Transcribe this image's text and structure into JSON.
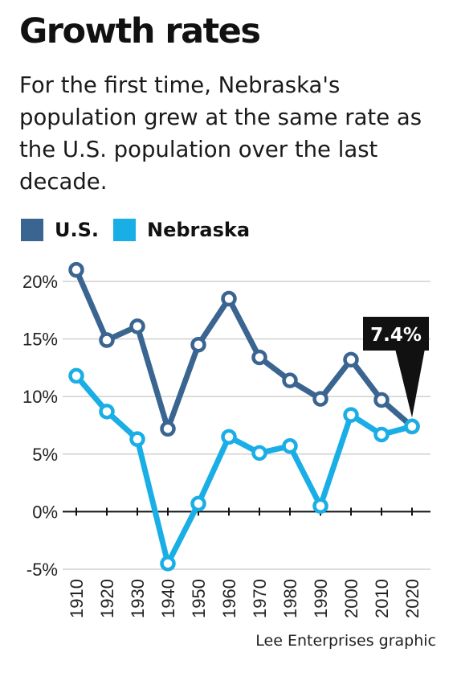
{
  "header": {
    "title": "Growth rates",
    "subtitle": "For the first time, Nebraska's population grew at the same rate as the U.S. population over the last decade."
  },
  "legend": [
    {
      "label": "U.S.",
      "color": "#3a6591"
    },
    {
      "label": "Nebraska",
      "color": "#1aaee6"
    }
  ],
  "callout": {
    "text": "7.4%"
  },
  "source": "Lee Enterprises graphic",
  "chart_data": {
    "type": "line",
    "x": [
      1910,
      1920,
      1930,
      1940,
      1950,
      1960,
      1970,
      1980,
      1990,
      2000,
      2010,
      2020
    ],
    "x_tick_labels": [
      "1910",
      "1920",
      "1930",
      "1940",
      "1950",
      "1960",
      "1970",
      "1980",
      "1990",
      "2000",
      "2010",
      "2020"
    ],
    "y_tick_values": [
      20,
      15,
      10,
      5,
      0,
      -5
    ],
    "y_tick_labels": [
      "20%",
      "15%",
      "10%",
      "5%",
      "0%",
      "-5%"
    ],
    "ylim": [
      -5,
      22
    ],
    "grid": true,
    "legend_position": "top-left",
    "series": [
      {
        "name": "U.S.",
        "color": "#3a6591",
        "values": [
          21.0,
          14.9,
          16.1,
          7.2,
          14.5,
          18.5,
          13.4,
          11.4,
          9.8,
          13.2,
          9.7,
          7.4
        ]
      },
      {
        "name": "Nebraska",
        "color": "#1aaee6",
        "values": [
          11.8,
          8.7,
          6.3,
          -4.5,
          0.7,
          6.5,
          5.1,
          5.7,
          0.5,
          8.4,
          6.7,
          7.4
        ]
      }
    ],
    "annotations": [
      {
        "x": 2020,
        "y": 7.4,
        "text": "7.4%"
      }
    ]
  }
}
